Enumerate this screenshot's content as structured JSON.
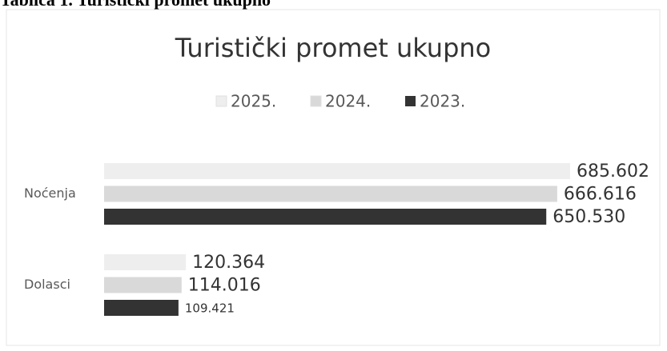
{
  "caption": "Tablica 1. Turistički promet ukupno",
  "chart_data": {
    "type": "hbar",
    "title": "Turistički promet ukupno",
    "categories": [
      "Noćenja",
      "Dolasci"
    ],
    "series": [
      {
        "name": "2025.",
        "color": "#eeeeee",
        "values": [
          685602,
          120364
        ],
        "value_labels": [
          "685.602",
          "120.364"
        ]
      },
      {
        "name": "2024.",
        "color": "#d9d9d9",
        "values": [
          666616,
          114016
        ],
        "value_labels": [
          "666.616",
          "114.016"
        ]
      },
      {
        "name": "2023.",
        "color": "#333333",
        "values": [
          650530,
          109421
        ],
        "value_labels": [
          "650.530",
          "109.421"
        ]
      }
    ]
  }
}
